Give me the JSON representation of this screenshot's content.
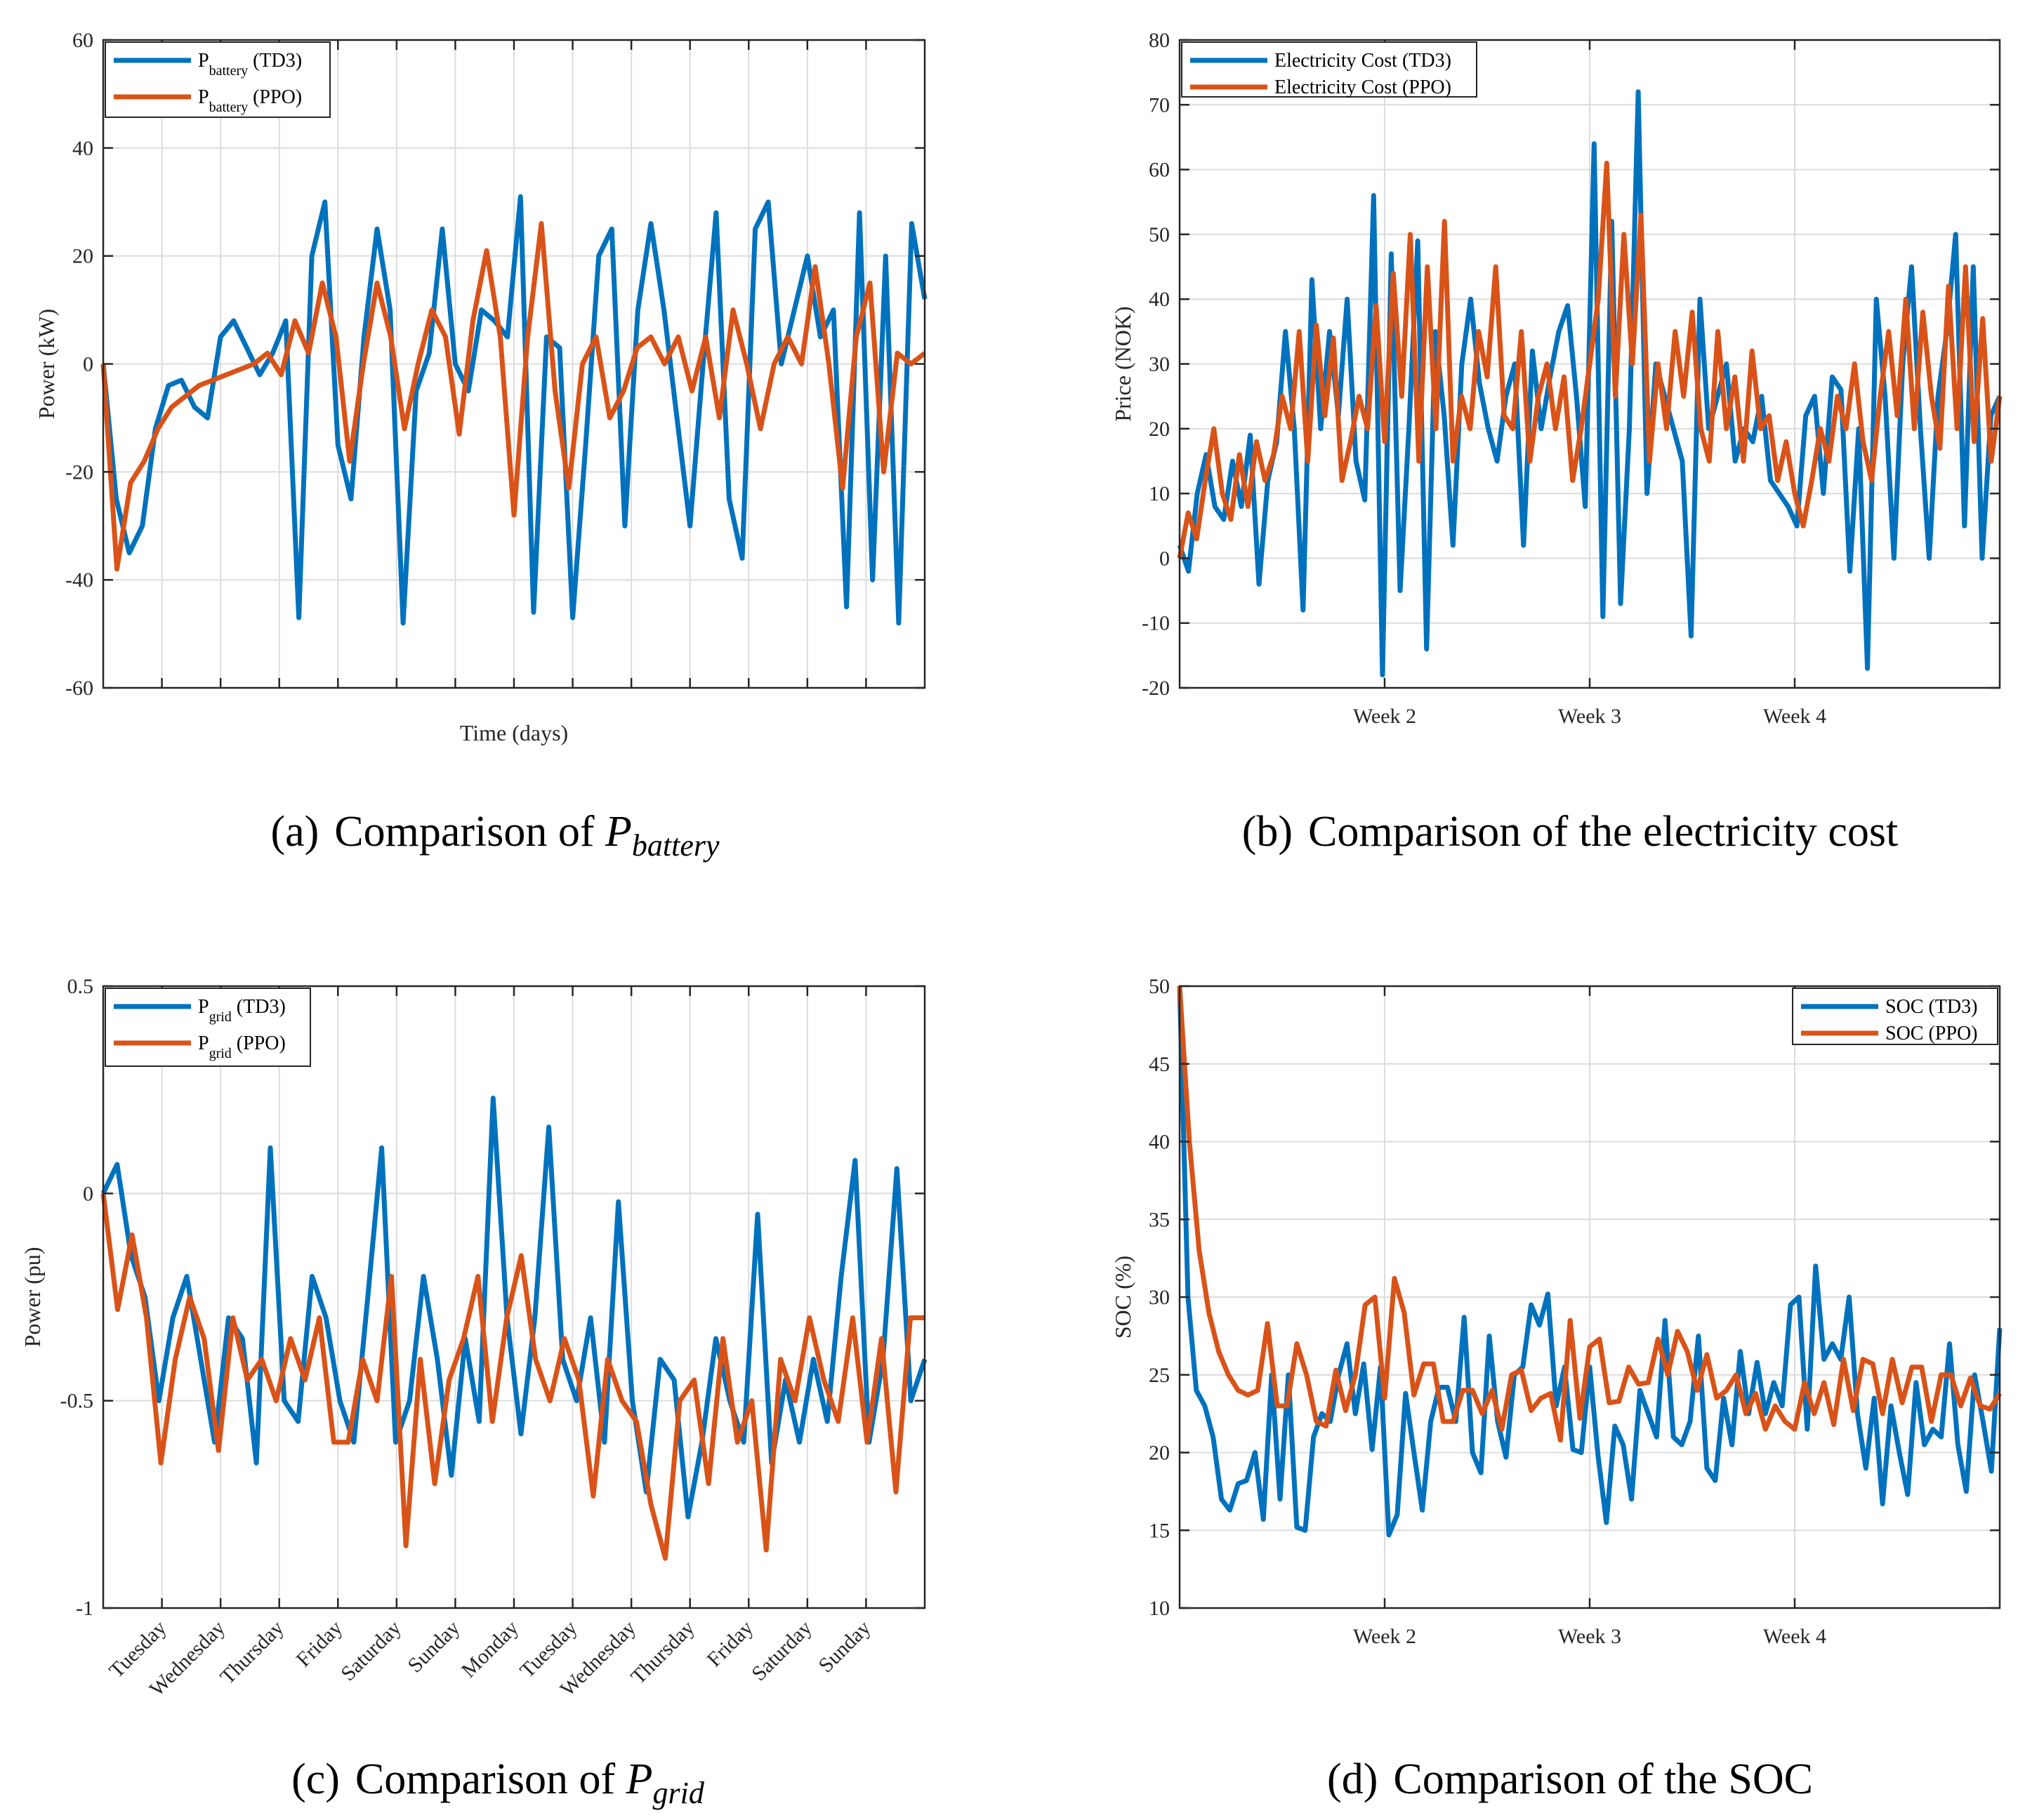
{
  "colors": {
    "td3": "#0072BD",
    "ppo": "#D95319",
    "grid": "#dcdcdc",
    "axis": "#262626"
  },
  "chart_data": [
    {
      "id": "a",
      "type": "line",
      "caption": {
        "label": "(a)",
        "text": "Comparison of ",
        "var": "P",
        "sub": "battery"
      },
      "xlabel": "Time (days)",
      "ylabel": "Power (kW)",
      "xlim": [
        0,
        14
      ],
      "ylim": [
        -60,
        60
      ],
      "yticks": [
        "-60",
        "-40",
        "-20",
        "0",
        "20",
        "40",
        "60"
      ],
      "ytick_values": [
        -60,
        -40,
        -20,
        0,
        20,
        40,
        60
      ],
      "xtick_values": [
        1,
        2,
        3,
        4,
        5,
        6,
        7,
        8,
        9,
        10,
        11,
        12,
        13
      ],
      "xtick_labels": [],
      "grid": true,
      "legend_position": "top-left",
      "series": [
        {
          "name": "P battery (TD3)",
          "legend": {
            "main": "P",
            "sub": "battery",
            "suffix": " (TD3)"
          },
          "color": "td3",
          "values": [
            0,
            -25,
            -35,
            -30,
            -12,
            -4,
            -3,
            -8,
            -10,
            5,
            8,
            3,
            -2,
            2,
            8,
            -47,
            20,
            30,
            -15,
            -25,
            5,
            25,
            10,
            -48,
            -5,
            2,
            25,
            0,
            -5,
            10,
            8,
            5,
            31,
            -46,
            5,
            3,
            -47,
            -15,
            20,
            25,
            -30,
            10,
            26,
            10,
            -10,
            -30,
            0,
            28,
            -25,
            -36,
            25,
            30,
            0,
            10,
            20,
            5,
            10,
            -45,
            28,
            -40,
            20,
            -48,
            26,
            12
          ]
        },
        {
          "name": "P battery (PPO)",
          "legend": {
            "main": "P",
            "sub": "battery",
            "suffix": " (PPO)"
          },
          "color": "ppo",
          "values": [
            0,
            -38,
            -22,
            -18,
            -12,
            -8,
            -6,
            -4,
            -3,
            -2,
            -1,
            0,
            2,
            -2,
            8,
            2,
            15,
            5,
            -18,
            0,
            15,
            5,
            -12,
            0,
            10,
            5,
            -13,
            8,
            21,
            5,
            -28,
            5,
            26,
            -5,
            -23,
            0,
            5,
            -10,
            -5,
            3,
            5,
            0,
            5,
            -5,
            5,
            -10,
            10,
            0,
            -12,
            0,
            5,
            0,
            18,
            0,
            -23,
            5,
            15,
            -20,
            2,
            0,
            2
          ]
        }
      ]
    },
    {
      "id": "b",
      "type": "line",
      "caption": {
        "label": "(b)",
        "text": "Comparison of the electricity cost",
        "var": "",
        "sub": ""
      },
      "xlabel": "",
      "ylabel": "Price (NOK)",
      "xlim": [
        1,
        5
      ],
      "ylim": [
        -20,
        80
      ],
      "yticks": [
        "-20",
        "-10",
        "0",
        "10",
        "20",
        "30",
        "40",
        "50",
        "60",
        "70",
        "80"
      ],
      "ytick_values": [
        -20,
        -10,
        0,
        10,
        20,
        30,
        40,
        50,
        60,
        70,
        80
      ],
      "xtick_values": [
        2,
        3,
        4
      ],
      "xtick_labels": [
        "Week 2",
        "Week 3",
        "Week 4"
      ],
      "grid": true,
      "legend_position": "top-left",
      "series": [
        {
          "name": "Electricity Cost (TD3)",
          "legend": {
            "main": "Electricity Cost (TD3)",
            "sub": "",
            "suffix": ""
          },
          "color": "td3",
          "values": [
            2,
            -2,
            10,
            16,
            8,
            6,
            15,
            8,
            19,
            -4,
            12,
            18,
            35,
            20,
            -8,
            43,
            20,
            35,
            22,
            40,
            15,
            9,
            56,
            -18,
            47,
            -5,
            20,
            49,
            -14,
            35,
            22,
            2,
            30,
            40,
            27,
            20,
            15,
            25,
            30,
            2,
            32,
            20,
            28,
            35,
            39,
            25,
            8,
            64,
            -9,
            52,
            -7,
            20,
            72,
            10,
            30,
            25,
            20,
            15,
            -12,
            40,
            20,
            25,
            30,
            15,
            20,
            18,
            25,
            12,
            10,
            8,
            5,
            22,
            25,
            10,
            28,
            26,
            -2,
            20,
            -17,
            40,
            25,
            0,
            30,
            45,
            20,
            0,
            25,
            35,
            50,
            5,
            45,
            0,
            22,
            25
          ]
        },
        {
          "name": "Electricity Cost (PPO)",
          "legend": {
            "main": "Electricity Cost (PPO)",
            "sub": "",
            "suffix": ""
          },
          "color": "ppo",
          "values": [
            0,
            7,
            3,
            12,
            20,
            10,
            6,
            16,
            8,
            18,
            12,
            16,
            25,
            20,
            35,
            15,
            36,
            22,
            34,
            12,
            18,
            25,
            20,
            39,
            18,
            44,
            25,
            50,
            15,
            45,
            20,
            52,
            15,
            25,
            20,
            35,
            28,
            45,
            22,
            20,
            35,
            15,
            25,
            30,
            20,
            28,
            12,
            20,
            30,
            40,
            61,
            25,
            50,
            30,
            53,
            15,
            30,
            20,
            35,
            25,
            38,
            20,
            15,
            35,
            20,
            28,
            15,
            32,
            20,
            22,
            12,
            18,
            10,
            5,
            12,
            20,
            15,
            25,
            20,
            30,
            18,
            12,
            25,
            35,
            22,
            40,
            20,
            38,
            25,
            17,
            42,
            20,
            45,
            18,
            37,
            15,
            25
          ]
        }
      ]
    },
    {
      "id": "c",
      "type": "line",
      "caption": {
        "label": "(c)",
        "text": "Comparison of ",
        "var": "P",
        "sub": "grid"
      },
      "xlabel": "",
      "ylabel": "Power (pu)",
      "xlim": [
        0,
        14
      ],
      "ylim": [
        -1,
        0.5
      ],
      "yticks": [
        "-1",
        "-0.5",
        "0",
        "0.5"
      ],
      "ytick_values": [
        -1,
        -0.5,
        0,
        0.5
      ],
      "xtick_values": [
        1,
        2,
        3,
        4,
        5,
        6,
        7,
        8,
        9,
        10,
        11,
        12,
        13
      ],
      "xtick_labels": [
        "Tuesday",
        "Wednesday",
        "Thursday",
        "Friday",
        "Saturday",
        "Sunday",
        "Monday",
        "Tuesday",
        "Wednesday",
        "Thursday",
        "Friday",
        "Saturday",
        "Sunday"
      ],
      "grid": true,
      "legend_position": "top-left",
      "series": [
        {
          "name": "P grid (TD3)",
          "legend": {
            "main": "P",
            "sub": "grid",
            "suffix": " (TD3)"
          },
          "color": "td3",
          "values": [
            0,
            0.07,
            -0.15,
            -0.25,
            -0.5,
            -0.3,
            -0.2,
            -0.4,
            -0.6,
            -0.3,
            -0.35,
            -0.65,
            0.11,
            -0.5,
            -0.55,
            -0.2,
            -0.3,
            -0.5,
            -0.6,
            -0.25,
            0.11,
            -0.6,
            -0.5,
            -0.2,
            -0.4,
            -0.68,
            -0.35,
            -0.55,
            0.23,
            -0.3,
            -0.58,
            -0.3,
            0.16,
            -0.4,
            -0.5,
            -0.3,
            -0.6,
            -0.02,
            -0.5,
            -0.72,
            -0.4,
            -0.45,
            -0.78,
            -0.6,
            -0.35,
            -0.5,
            -0.6,
            -0.05,
            -0.65,
            -0.45,
            -0.6,
            -0.4,
            -0.55,
            -0.2,
            0.08,
            -0.6,
            -0.4,
            0.06,
            -0.5,
            -0.4
          ]
        },
        {
          "name": "P grid (PPO)",
          "legend": {
            "main": "P",
            "sub": "grid",
            "suffix": " (PPO)"
          },
          "color": "ppo",
          "values": [
            0,
            -0.28,
            -0.1,
            -0.3,
            -0.65,
            -0.4,
            -0.25,
            -0.35,
            -0.62,
            -0.3,
            -0.45,
            -0.4,
            -0.5,
            -0.35,
            -0.45,
            -0.3,
            -0.6,
            -0.6,
            -0.4,
            -0.5,
            -0.2,
            -0.85,
            -0.4,
            -0.7,
            -0.45,
            -0.35,
            -0.2,
            -0.55,
            -0.3,
            -0.15,
            -0.4,
            -0.5,
            -0.35,
            -0.45,
            -0.73,
            -0.4,
            -0.5,
            -0.55,
            -0.75,
            -0.88,
            -0.5,
            -0.45,
            -0.7,
            -0.35,
            -0.6,
            -0.5,
            -0.86,
            -0.4,
            -0.5,
            -0.3,
            -0.45,
            -0.55,
            -0.3,
            -0.6,
            -0.35,
            -0.72,
            -0.3,
            -0.3
          ]
        }
      ]
    },
    {
      "id": "d",
      "type": "line",
      "caption": {
        "label": "(d)",
        "text": "Comparison of the SOC",
        "var": "",
        "sub": ""
      },
      "xlabel": "",
      "ylabel": "SOC (%)",
      "xlim": [
        1,
        5
      ],
      "ylim": [
        10,
        50
      ],
      "yticks": [
        "10",
        "15",
        "20",
        "25",
        "30",
        "35",
        "40",
        "45",
        "50"
      ],
      "ytick_values": [
        10,
        15,
        20,
        25,
        30,
        35,
        40,
        45,
        50
      ],
      "xtick_values": [
        2,
        3,
        4
      ],
      "xtick_labels": [
        "Week 2",
        "Week 3",
        "Week 4"
      ],
      "grid": true,
      "legend_position": "top-right",
      "series": [
        {
          "name": "SOC (TD3)",
          "legend": {
            "main": "SOC (TD3)",
            "sub": "",
            "suffix": ""
          },
          "color": "td3",
          "values": [
            50,
            30,
            24,
            23,
            21,
            17,
            16.3,
            18,
            18.2,
            20,
            15.7,
            25,
            17,
            25,
            15.2,
            15,
            21,
            22.5,
            22,
            25,
            27,
            22.5,
            25.7,
            20.2,
            25.5,
            14.7,
            16,
            23.8,
            20,
            16.3,
            22,
            24.2,
            24.2,
            22,
            28.7,
            20,
            18.7,
            27.5,
            22,
            19.7,
            25,
            25.5,
            29.5,
            28.2,
            30.2,
            23,
            25.5,
            20.2,
            20,
            25.5,
            19.8,
            15.5,
            21.7,
            20.5,
            17,
            24,
            22.5,
            21,
            28.5,
            21,
            20.5,
            22,
            27.5,
            19,
            18.2,
            23.5,
            20.5,
            26.5,
            22.5,
            25.8,
            22.5,
            24.5,
            23,
            29.5,
            30,
            21.5,
            32,
            26,
            27,
            26,
            30,
            22.5,
            19,
            23.5,
            16.7,
            23,
            20,
            17.3,
            24.5,
            20.5,
            21.5,
            21,
            27,
            20.5,
            17.5,
            25,
            22,
            18.8,
            28
          ]
        },
        {
          "name": "SOC (PPO)",
          "legend": {
            "main": "SOC (PPO)",
            "sub": "",
            "suffix": ""
          },
          "color": "ppo",
          "values": [
            50,
            40,
            33,
            29,
            26.5,
            25,
            24,
            23.7,
            24,
            28.3,
            23,
            23,
            27,
            25,
            22,
            21.7,
            25.3,
            22.7,
            25,
            29.5,
            30,
            23.5,
            31.2,
            29,
            23.7,
            25.7,
            25.7,
            22,
            22,
            24,
            24,
            22.5,
            24,
            21.5,
            25,
            25.3,
            22.7,
            23.5,
            23.8,
            20.8,
            28.5,
            22.2,
            26.8,
            27.3,
            23.2,
            23.3,
            25.5,
            24.4,
            24.5,
            27.3,
            25,
            27.8,
            26.5,
            24,
            26.3,
            23.5,
            24,
            25,
            22.5,
            23.8,
            21.5,
            23,
            22,
            21.5,
            24.5,
            22.5,
            24.5,
            21.8,
            26,
            22.7,
            26,
            25.7,
            22.5,
            26,
            23.2,
            25.5,
            25.5,
            22,
            25,
            25,
            23,
            24.8,
            23,
            22.8,
            23.8
          ]
        }
      ]
    }
  ]
}
